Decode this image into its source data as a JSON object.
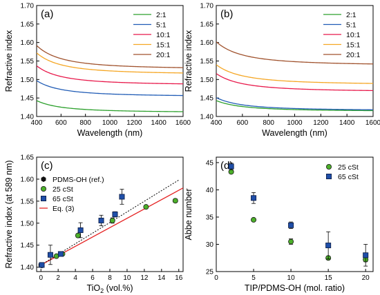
{
  "chart_data": [
    {
      "panel": "(a)",
      "type": "line",
      "xlabel": "Wavelength (nm)",
      "ylabel": "Refractive index",
      "xlim": [
        400,
        1600
      ],
      "ylim": [
        1.4,
        1.7
      ],
      "xticks": [
        400,
        600,
        800,
        1000,
        1200,
        1400,
        1600
      ],
      "yticks": [
        1.4,
        1.45,
        1.5,
        1.55,
        1.6,
        1.65,
        1.7
      ],
      "legend_position": "top-right",
      "series": [
        {
          "name": "2:1",
          "color": "#2ca02c",
          "n_inf": 1.411,
          "n_400": 1.443
        },
        {
          "name": "5:1",
          "color": "#1f5bb5",
          "n_inf": 1.454,
          "n_400": 1.497
        },
        {
          "name": "10:1",
          "color": "#e8184a",
          "n_inf": 1.485,
          "n_400": 1.537
        },
        {
          "name": "15:1",
          "color": "#f5a623",
          "n_inf": 1.514,
          "n_400": 1.572
        },
        {
          "name": "20:1",
          "color": "#a0522d",
          "n_inf": 1.528,
          "n_400": 1.592
        }
      ]
    },
    {
      "panel": "(b)",
      "type": "line",
      "xlabel": "Wavelength (nm)",
      "ylabel": "Refractive index",
      "xlim": [
        400,
        1600
      ],
      "ylim": [
        1.4,
        1.7
      ],
      "xticks": [
        400,
        600,
        800,
        1000,
        1200,
        1400,
        1600
      ],
      "yticks": [
        1.4,
        1.45,
        1.5,
        1.55,
        1.6,
        1.65,
        1.7
      ],
      "legend_position": "top-right",
      "series": [
        {
          "name": "2:1",
          "color": "#2ca02c",
          "n_inf": 1.414,
          "n_400": 1.443
        },
        {
          "name": "5:1",
          "color": "#1f5bb5",
          "n_inf": 1.416,
          "n_400": 1.451
        },
        {
          "name": "10:1",
          "color": "#e8184a",
          "n_inf": 1.467,
          "n_400": 1.516
        },
        {
          "name": "15:1",
          "color": "#f5a623",
          "n_inf": 1.486,
          "n_400": 1.54
        },
        {
          "name": "20:1",
          "color": "#a0522d",
          "n_inf": 1.538,
          "n_400": 1.602
        }
      ]
    },
    {
      "panel": "(c)",
      "type": "scatter",
      "xlabel": "TiO",
      "xlabel_sub": "2",
      "xlabel_suffix": " (vol.%)",
      "ylabel": "Refractive index (at 589 nm)",
      "xlim": [
        -0.5,
        16.5
      ],
      "ylim": [
        1.39,
        1.65
      ],
      "xticks": [
        0,
        2,
        4,
        6,
        8,
        10,
        12,
        14,
        16
      ],
      "yticks": [
        1.4,
        1.45,
        1.5,
        1.55,
        1.6,
        1.65
      ],
      "legend_position": "top-left",
      "series": [
        {
          "name": "PDMS-OH (ref.)",
          "marker": "hexagon",
          "color": "#111111",
          "points": [
            [
              0,
              1.405
            ]
          ]
        },
        {
          "name": "25 cSt",
          "marker": "circle",
          "color": "#4caf2a",
          "points": [
            [
              0.1,
              1.404,
              0.003
            ],
            [
              1.8,
              1.425,
              0.002
            ],
            [
              2.5,
              1.43,
              0.002
            ],
            [
              4.3,
              1.472,
              0.004
            ],
            [
              8.3,
              1.506,
              0.006
            ],
            [
              12.2,
              1.537,
              0.003
            ],
            [
              15.6,
              1.551,
              0.004
            ]
          ]
        },
        {
          "name": "65 cSt",
          "marker": "square",
          "color": "#1f4ea8",
          "points": [
            [
              0.1,
              1.405,
              0.003
            ],
            [
              1.1,
              1.428,
              0.022
            ],
            [
              2.3,
              1.43,
              0.003
            ],
            [
              4.6,
              1.484,
              0.017
            ],
            [
              7.0,
              1.506,
              0.012
            ],
            [
              8.6,
              1.52,
              0.006
            ],
            [
              9.4,
              1.56,
              0.017
            ]
          ]
        },
        {
          "name": "Eq. (3)",
          "type": "line",
          "color": "#e52222",
          "points": [
            [
              0,
              1.405
            ],
            [
              16.5,
              1.58
            ]
          ]
        },
        {
          "name": "",
          "type": "line",
          "style": "dotted",
          "color": "#000000",
          "points": [
            [
              0,
              1.405
            ],
            [
              16,
              1.598
            ]
          ]
        }
      ]
    },
    {
      "panel": "(d)",
      "type": "scatter",
      "xlabel": "TIP/PDMS-OH (mol. ratio)",
      "ylabel": "Abbe number",
      "xlim": [
        0,
        21
      ],
      "ylim": [
        25,
        46
      ],
      "xticks": [
        0,
        5,
        10,
        15,
        20
      ],
      "yticks": [
        25,
        30,
        35,
        40,
        45
      ],
      "legend_position": "top-right",
      "series": [
        {
          "name": "25 cSt",
          "marker": "circle",
          "color": "#4caf2a",
          "points": [
            [
              2,
              43.3,
              0.3
            ],
            [
              5,
              34.5,
              0.2
            ],
            [
              10,
              30.5,
              0.5
            ],
            [
              15,
              27.5,
              0.3
            ],
            [
              20,
              27.2,
              0.4
            ]
          ]
        },
        {
          "name": "65 cSt",
          "marker": "square",
          "color": "#1f4ea8",
          "points": [
            [
              2,
              44.3,
              0.6
            ],
            [
              5,
              38.5,
              1.0
            ],
            [
              10,
              33.5,
              0.6
            ],
            [
              15,
              29.8,
              2.5
            ],
            [
              20,
              28.0,
              2.0
            ]
          ]
        }
      ]
    }
  ]
}
